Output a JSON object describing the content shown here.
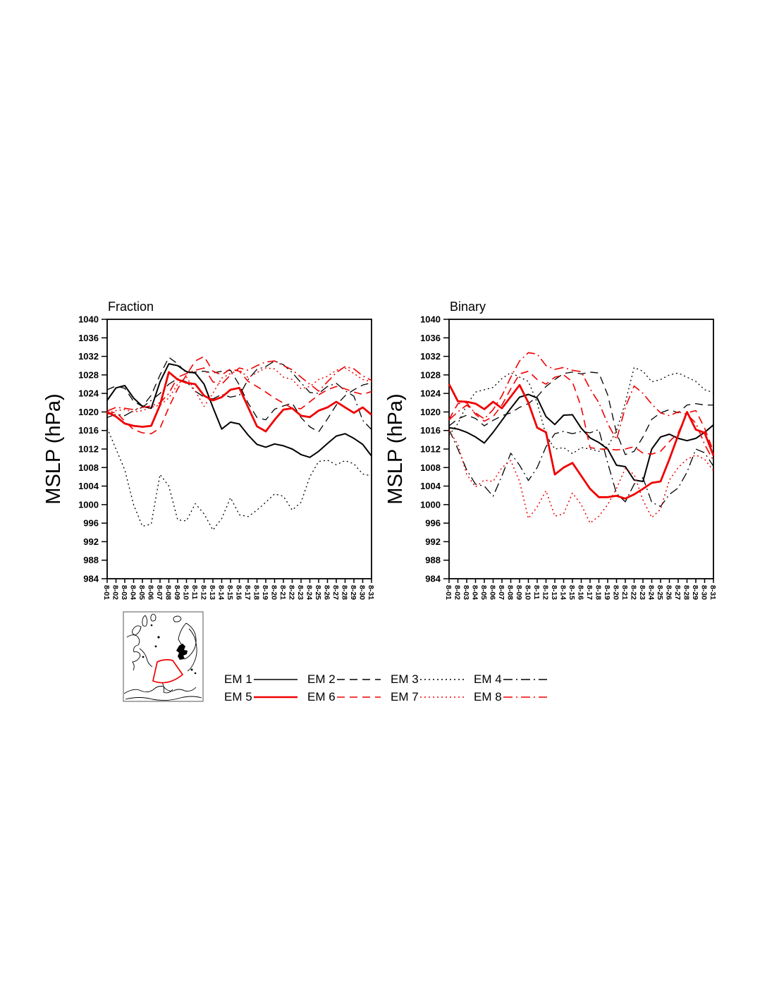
{
  "figure": {
    "background": "#ffffff",
    "black": "#000000",
    "red": "#f00000"
  },
  "chart_data": [
    {
      "type": "line",
      "title": "Fraction",
      "ylabel": "MSLP (hPa)",
      "ylim": [
        984,
        1040
      ],
      "ytick_step": 4,
      "grid": false,
      "x_labels": [
        "8-01",
        "8-02",
        "8-03",
        "8-04",
        "8-05",
        "8-06",
        "8-07",
        "8-08",
        "8-09",
        "8-10",
        "8-11",
        "8-12",
        "8-13",
        "8-14",
        "8-15",
        "8-16",
        "8-17",
        "8-18",
        "8-19",
        "8-20",
        "8-21",
        "8-22",
        "8-23",
        "8-24",
        "8-25",
        "8-26",
        "8-27",
        "8-28",
        "8-29",
        "8-30",
        "8-31"
      ],
      "series": [
        {
          "name": "EM 1",
          "color": "#000000",
          "style": "solid",
          "width": 2.0,
          "values": [
            1022.5,
            1025.2,
            1025.7,
            1023.0,
            1021.2,
            1020.8,
            1026.5,
            1030.4,
            1030.0,
            1028.7,
            1028.4,
            1026.0,
            1021.0,
            1016.3,
            1017.8,
            1017.4,
            1015.0,
            1013.0,
            1012.4,
            1013.1,
            1012.7,
            1012.0,
            1010.8,
            1010.2,
            1011.5,
            1013.2,
            1014.8,
            1015.3,
            1014.3,
            1013.0,
            1010.5
          ]
        },
        {
          "name": "EM 2",
          "color": "#000000",
          "style": "dashed",
          "width": 1.3,
          "values": [
            1024.8,
            1025.6,
            1025.1,
            1022.3,
            1021.2,
            1023.6,
            1028.0,
            1031.8,
            1030.4,
            1028.4,
            1028.6,
            1028.8,
            1028.4,
            1028.8,
            1029.0,
            1025.8,
            1021.9,
            1018.8,
            1018.3,
            1020.6,
            1021.3,
            1021.9,
            1018.8,
            1016.8,
            1015.7,
            1018.5,
            1021.5,
            1023.5,
            1024.8,
            1025.8,
            1026.3
          ]
        },
        {
          "name": "EM 3",
          "color": "#000000",
          "style": "dotted",
          "width": 1.3,
          "values": [
            1016.5,
            1012.0,
            1007.5,
            1000.0,
            995.3,
            995.8,
            1006.5,
            1004.0,
            996.7,
            996.5,
            1000.2,
            998.0,
            994.5,
            997.0,
            1001.5,
            997.8,
            997.4,
            998.8,
            1000.5,
            1002.3,
            1001.8,
            998.8,
            1000.5,
            1006.0,
            1009.3,
            1009.6,
            1008.6,
            1009.5,
            1008.8,
            1006.6,
            1006.2
          ]
        },
        {
          "name": "EM 4",
          "color": "#000000",
          "style": "dashdot",
          "width": 1.3,
          "values": [
            1018.8,
            1019.5,
            1019.2,
            1020.3,
            1021.0,
            1022.5,
            1024.0,
            1026.0,
            1027.2,
            1026.5,
            1024.5,
            1023.2,
            1022.8,
            1023.8,
            1023.2,
            1023.6,
            1027.0,
            1029.2,
            1029.8,
            1031.0,
            1030.2,
            1028.5,
            1026.3,
            1024.2,
            1024.0,
            1025.5,
            1026.2,
            1024.6,
            1023.4,
            1018.2,
            1016.2
          ]
        },
        {
          "name": "EM 5",
          "color": "#f00000",
          "style": "solid",
          "width": 2.8,
          "values": [
            1020.0,
            1019.0,
            1017.5,
            1017.0,
            1016.8,
            1017.0,
            1021.5,
            1028.6,
            1027.0,
            1026.3,
            1026.0,
            1023.5,
            1022.5,
            1023.2,
            1024.8,
            1025.2,
            1021.0,
            1016.9,
            1015.8,
            1018.3,
            1020.5,
            1020.8,
            1019.2,
            1018.9,
            1020.3,
            1021.0,
            1022.2,
            1021.0,
            1019.8,
            1021.0,
            1019.4
          ]
        },
        {
          "name": "EM 6",
          "color": "#f00000",
          "style": "dashed",
          "width": 1.6,
          "values": [
            1019.5,
            1020.0,
            1018.0,
            1016.2,
            1015.5,
            1015.3,
            1016.5,
            1021.0,
            1025.0,
            1028.0,
            1031.0,
            1032.0,
            1028.8,
            1028.0,
            1029.3,
            1028.8,
            1026.6,
            1025.5,
            1024.3,
            1023.0,
            1021.9,
            1020.8,
            1020.7,
            1022.2,
            1023.7,
            1024.8,
            1025.5,
            1025.0,
            1024.3,
            1023.8,
            1024.4
          ]
        },
        {
          "name": "EM 7",
          "color": "#f00000",
          "style": "dotted",
          "width": 1.5,
          "values": [
            1019.8,
            1020.3,
            1020.5,
            1020.0,
            1020.3,
            1021.0,
            1021.5,
            1023.0,
            1026.0,
            1027.5,
            1024.5,
            1021.2,
            1024.0,
            1027.3,
            1028.3,
            1029.1,
            1027.4,
            1028.5,
            1029.5,
            1029.3,
            1027.5,
            1027.0,
            1025.0,
            1025.5,
            1027.0,
            1027.7,
            1029.0,
            1029.5,
            1028.3,
            1027.0,
            1026.5
          ]
        },
        {
          "name": "EM 8",
          "color": "#f00000",
          "style": "dashdot",
          "width": 1.6,
          "values": [
            1020.2,
            1021.0,
            1020.8,
            1020.5,
            1021.0,
            1021.3,
            1022.0,
            1024.0,
            1027.5,
            1028.3,
            1029.0,
            1029.5,
            1026.5,
            1026.0,
            1028.0,
            1029.5,
            1029.0,
            1030.0,
            1030.8,
            1031.0,
            1030.0,
            1029.1,
            1027.5,
            1026.0,
            1024.5,
            1026.5,
            1028.5,
            1029.8,
            1029.3,
            1027.8,
            1026.8
          ]
        }
      ]
    },
    {
      "type": "line",
      "title": "Binary",
      "ylabel": "MSLP (hPa)",
      "ylim": [
        984,
        1040
      ],
      "ytick_step": 4,
      "grid": false,
      "x_labels": [
        "8-01",
        "8-02",
        "8-03",
        "8-04",
        "8-05",
        "8-06",
        "8-07",
        "8-08",
        "8-09",
        "8-10",
        "8-11",
        "8-12",
        "8-13",
        "8-14",
        "8-15",
        "8-16",
        "8-17",
        "8-18",
        "8-19",
        "8-20",
        "8-21",
        "8-22",
        "8-23",
        "8-24",
        "8-25",
        "8-26",
        "8-27",
        "8-28",
        "8-29",
        "8-30",
        "8-31"
      ],
      "series": [
        {
          "name": "EM 1",
          "color": "#000000",
          "style": "solid",
          "width": 2.0,
          "values": [
            1016.6,
            1016.3,
            1015.6,
            1014.6,
            1013.3,
            1015.6,
            1018.2,
            1020.8,
            1023.2,
            1023.8,
            1023.0,
            1019.0,
            1017.3,
            1019.3,
            1019.4,
            1016.5,
            1014.4,
            1013.4,
            1012.0,
            1008.5,
            1008.2,
            1005.3,
            1005.0,
            1012.0,
            1014.6,
            1015.2,
            1014.3,
            1013.8,
            1014.3,
            1015.6,
            1017.2
          ]
        },
        {
          "name": "EM 2",
          "color": "#000000",
          "style": "dashed",
          "width": 1.3,
          "values": [
            1017.0,
            1018.5,
            1019.3,
            1018.6,
            1017.0,
            1018.2,
            1019.2,
            1019.8,
            1021.0,
            1021.8,
            1023.3,
            1025.5,
            1027.0,
            1028.3,
            1028.6,
            1028.2,
            1028.6,
            1028.4,
            1023.7,
            1015.5,
            1010.8,
            1011.5,
            1014.6,
            1018.4,
            1019.8,
            1020.5,
            1019.8,
            1021.5,
            1021.8,
            1021.5,
            1021.5
          ]
        },
        {
          "name": "EM 3",
          "color": "#000000",
          "style": "dotted",
          "width": 1.3,
          "values": [
            1015.0,
            1017.5,
            1021.5,
            1024.3,
            1024.8,
            1025.3,
            1027.2,
            1028.5,
            1027.5,
            1026.6,
            1022.0,
            1015.0,
            1012.0,
            1012.3,
            1011.0,
            1012.3,
            1012.0,
            1011.5,
            1012.5,
            1016.0,
            1022.0,
            1029.6,
            1028.8,
            1026.5,
            1027.0,
            1028.0,
            1028.4,
            1027.5,
            1026.6,
            1024.8,
            1024.2
          ]
        },
        {
          "name": "EM 4",
          "color": "#000000",
          "style": "dashdot",
          "width": 1.3,
          "values": [
            1016.2,
            1012.0,
            1007.5,
            1004.4,
            1004.0,
            1001.8,
            1006.2,
            1011.1,
            1008.5,
            1005.2,
            1008.0,
            1012.5,
            1015.3,
            1015.8,
            1015.3,
            1015.8,
            1015.5,
            1016.2,
            1009.0,
            1002.4,
            1000.6,
            1004.4,
            1005.8,
            1000.5,
            999.6,
            1002.2,
            1003.6,
            1007.0,
            1012.0,
            1011.2,
            1008.3
          ]
        },
        {
          "name": "EM 5",
          "color": "#f00000",
          "style": "solid",
          "width": 2.8,
          "values": [
            1026.0,
            1022.3,
            1022.2,
            1021.8,
            1020.6,
            1022.2,
            1020.8,
            1023.3,
            1025.8,
            1022.0,
            1016.6,
            1015.6,
            1006.5,
            1008.0,
            1009.0,
            1006.2,
            1003.4,
            1001.6,
            1001.6,
            1001.9,
            1001.3,
            1002.2,
            1003.4,
            1004.7,
            1005.0,
            1009.8,
            1015.0,
            1020.0,
            1016.2,
            1015.5,
            1010.6
          ]
        },
        {
          "name": "EM 6",
          "color": "#f00000",
          "style": "dashed",
          "width": 1.6,
          "values": [
            1018.4,
            1021.8,
            1022.0,
            1019.5,
            1018.0,
            1019.0,
            1021.5,
            1025.0,
            1028.2,
            1028.8,
            1027.0,
            1026.0,
            1027.5,
            1028.0,
            1026.5,
            1021.0,
            1012.3,
            1012.0,
            1012.0,
            1011.8,
            1012.0,
            1012.5,
            1011.1,
            1010.9,
            1011.5,
            1013.6,
            1015.5,
            1019.8,
            1020.3,
            1016.5,
            1011.5
          ]
        },
        {
          "name": "EM 7",
          "color": "#f00000",
          "style": "dotted",
          "width": 1.5,
          "values": [
            1016.0,
            1013.0,
            1006.5,
            1003.8,
            1005.3,
            1005.0,
            1008.0,
            1009.5,
            1005.0,
            997.0,
            999.5,
            1003.0,
            997.5,
            998.0,
            1002.5,
            1000.0,
            996.0,
            997.5,
            1000.0,
            1003.5,
            1007.8,
            1006.5,
            1001.0,
            997.2,
            999.0,
            1005.3,
            1008.0,
            1009.8,
            1010.7,
            1009.8,
            1007.3
          ]
        },
        {
          "name": "EM 8",
          "color": "#f00000",
          "style": "dashdot",
          "width": 1.6,
          "values": [
            1018.3,
            1020.0,
            1021.5,
            1019.8,
            1018.5,
            1020.5,
            1023.5,
            1027.5,
            1031.0,
            1032.8,
            1032.5,
            1030.0,
            1029.2,
            1029.6,
            1029.0,
            1028.7,
            1025.0,
            1022.0,
            1017.5,
            1014.0,
            1021.0,
            1025.6,
            1024.0,
            1021.7,
            1019.8,
            1019.2,
            1020.0,
            1019.5,
            1017.6,
            1013.0,
            1009.5
          ]
        }
      ]
    }
  ],
  "legend": {
    "entries": [
      {
        "label": "EM 1",
        "color": "#000000",
        "style": "solid"
      },
      {
        "label": "EM 2",
        "color": "#000000",
        "style": "dashed"
      },
      {
        "label": "EM 3",
        "color": "#000000",
        "style": "dotted"
      },
      {
        "label": "EM 4",
        "color": "#000000",
        "style": "dashdot"
      },
      {
        "label": "EM 5",
        "color": "#f00000",
        "style": "solid"
      },
      {
        "label": "EM 6",
        "color": "#f00000",
        "style": "dashed"
      },
      {
        "label": "EM 7",
        "color": "#f00000",
        "style": "dotted"
      },
      {
        "label": "EM 8",
        "color": "#f00000",
        "style": "dashdot"
      }
    ]
  },
  "map_inset": {
    "coast_color": "#000000",
    "region_outline_color": "#f00000"
  }
}
